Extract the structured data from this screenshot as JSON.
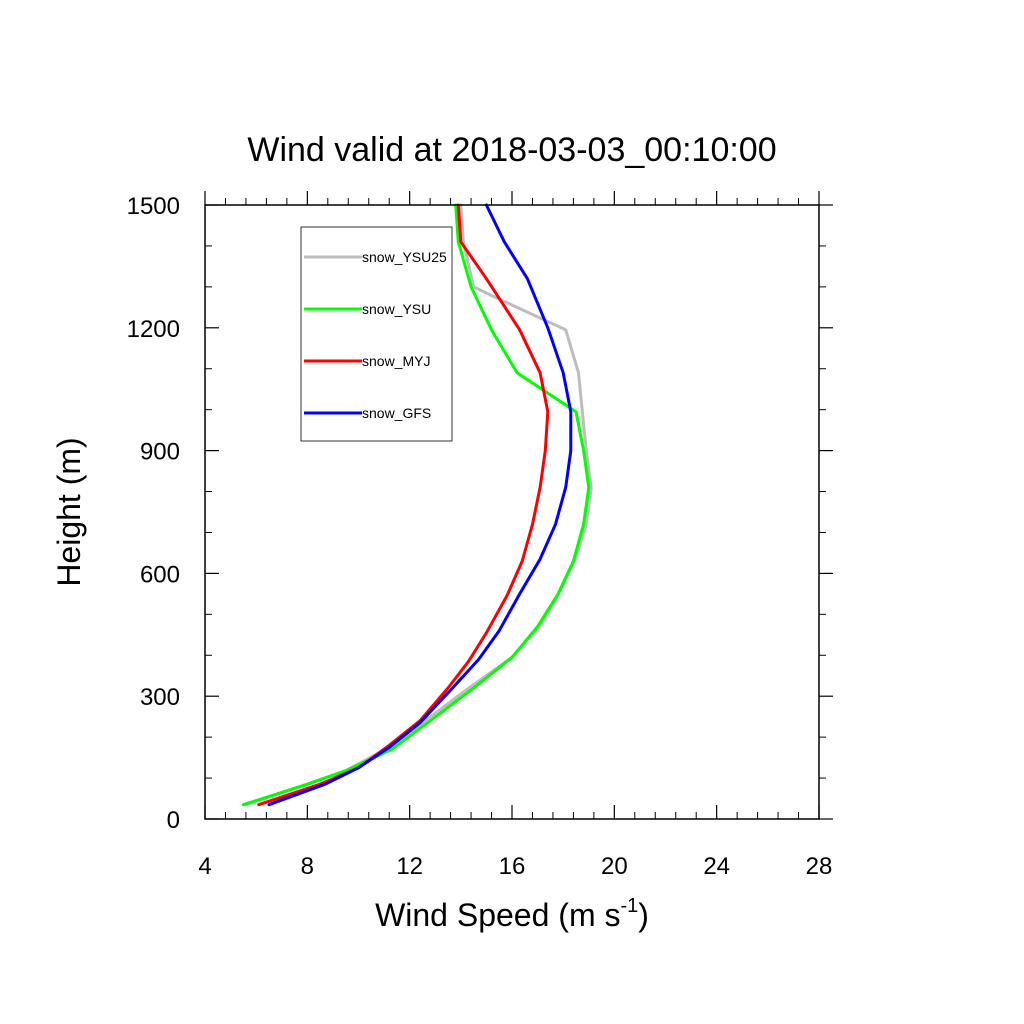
{
  "chart_data": {
    "type": "line",
    "title": "Wind valid at 2018-03-03_00:10:00",
    "xlabel": {
      "main": "Wind Speed (m s",
      "sup": "-1",
      "end": ")"
    },
    "ylabel": "Height (m)",
    "xlim": [
      4,
      28
    ],
    "ylim": [
      0,
      1500
    ],
    "xticks": [
      4,
      8,
      12,
      16,
      20,
      24,
      28
    ],
    "yticks": [
      0,
      300,
      600,
      900,
      1200,
      1500
    ],
    "grid": false,
    "legend_position": "top-left",
    "series": [
      {
        "name": "snow_YSU25",
        "color": "#bdbdbd",
        "points": [
          [
            5.6,
            35
          ],
          [
            8.0,
            85
          ],
          [
            9.5,
            118
          ],
          [
            11.2,
            175
          ],
          [
            12.6,
            240
          ],
          [
            14.2,
            315
          ],
          [
            16.0,
            395
          ],
          [
            17.2,
            480
          ],
          [
            17.9,
            560
          ],
          [
            18.5,
            640
          ],
          [
            18.9,
            720
          ],
          [
            19.1,
            810
          ],
          [
            18.9,
            900
          ],
          [
            18.6,
            1090
          ],
          [
            18.1,
            1195
          ],
          [
            15.5,
            1270
          ],
          [
            14.5,
            1300
          ],
          [
            14.1,
            1410
          ],
          [
            14.0,
            1500
          ]
        ]
      },
      {
        "name": "snow_YSU",
        "color": "#00ff00",
        "points": [
          [
            5.5,
            35
          ],
          [
            8.0,
            85
          ],
          [
            9.5,
            118
          ],
          [
            11.3,
            170
          ],
          [
            12.8,
            240
          ],
          [
            14.5,
            320
          ],
          [
            16.0,
            395
          ],
          [
            17.0,
            470
          ],
          [
            17.8,
            550
          ],
          [
            18.4,
            630
          ],
          [
            18.8,
            720
          ],
          [
            19.0,
            810
          ],
          [
            18.8,
            900
          ],
          [
            18.5,
            995
          ],
          [
            16.2,
            1090
          ],
          [
            15.2,
            1195
          ],
          [
            14.4,
            1300
          ],
          [
            13.9,
            1410
          ],
          [
            13.8,
            1500
          ]
        ]
      },
      {
        "name": "snow_MYJ",
        "color": "#ff0000",
        "points": [
          [
            6.1,
            35
          ],
          [
            8.5,
            85
          ],
          [
            10.0,
            125
          ],
          [
            11.2,
            180
          ],
          [
            12.4,
            240
          ],
          [
            13.5,
            320
          ],
          [
            14.3,
            385
          ],
          [
            15.0,
            455
          ],
          [
            15.8,
            545
          ],
          [
            16.4,
            630
          ],
          [
            16.8,
            720
          ],
          [
            17.1,
            810
          ],
          [
            17.3,
            900
          ],
          [
            17.4,
            995
          ],
          [
            17.1,
            1090
          ],
          [
            16.3,
            1195
          ],
          [
            15.0,
            1320
          ],
          [
            14.0,
            1410
          ],
          [
            13.9,
            1500
          ]
        ]
      },
      {
        "name": "snow_GFS",
        "color": "#0000ff",
        "points": [
          [
            6.5,
            35
          ],
          [
            8.7,
            85
          ],
          [
            10.0,
            125
          ],
          [
            11.2,
            175
          ],
          [
            12.4,
            235
          ],
          [
            13.6,
            315
          ],
          [
            14.7,
            390
          ],
          [
            15.5,
            460
          ],
          [
            16.3,
            550
          ],
          [
            17.1,
            635
          ],
          [
            17.7,
            720
          ],
          [
            18.1,
            810
          ],
          [
            18.3,
            900
          ],
          [
            18.3,
            995
          ],
          [
            18.0,
            1090
          ],
          [
            17.4,
            1200
          ],
          [
            16.6,
            1320
          ],
          [
            15.7,
            1410
          ],
          [
            15.0,
            1500
          ]
        ]
      }
    ]
  }
}
